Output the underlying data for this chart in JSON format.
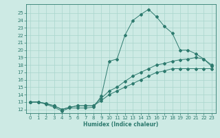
{
  "xlabel": "Humidex (Indice chaleur)",
  "background_color": "#cdeae4",
  "grid_color": "#a8d5cc",
  "line_color": "#2d7a6e",
  "xlim": [
    -0.5,
    23.5
  ],
  "ylim": [
    11.5,
    26.2
  ],
  "xticks": [
    0,
    1,
    2,
    3,
    4,
    5,
    6,
    7,
    8,
    9,
    10,
    11,
    12,
    13,
    14,
    15,
    16,
    17,
    18,
    19,
    20,
    21,
    22,
    23
  ],
  "yticks": [
    12,
    13,
    14,
    15,
    16,
    17,
    18,
    19,
    20,
    21,
    22,
    23,
    24,
    25
  ],
  "line1_x": [
    0,
    1,
    2,
    3,
    4,
    5,
    6,
    7,
    8,
    9,
    10,
    11,
    12,
    13,
    14,
    15,
    16,
    17,
    18,
    19,
    20,
    21,
    22,
    23
  ],
  "line1_y": [
    13.0,
    13.0,
    12.7,
    12.3,
    11.8,
    12.2,
    12.2,
    12.2,
    12.3,
    13.8,
    18.5,
    18.8,
    22.0,
    24.0,
    24.8,
    25.5,
    24.5,
    23.2,
    22.3,
    20.0,
    20.0,
    19.5,
    18.8,
    17.8
  ],
  "line2_x": [
    0,
    1,
    2,
    3,
    4,
    5,
    6,
    7,
    8,
    9,
    10,
    11,
    12,
    13,
    14,
    15,
    16,
    17,
    18,
    19,
    20,
    21,
    22,
    23
  ],
  "line2_y": [
    13.0,
    13.0,
    12.8,
    12.5,
    12.0,
    12.3,
    12.5,
    12.5,
    12.5,
    13.5,
    14.5,
    15.0,
    15.8,
    16.5,
    17.0,
    17.5,
    18.0,
    18.2,
    18.5,
    18.7,
    18.8,
    19.0,
    18.8,
    18.0
  ],
  "line3_x": [
    0,
    1,
    2,
    3,
    4,
    5,
    6,
    7,
    8,
    9,
    10,
    11,
    12,
    13,
    14,
    15,
    16,
    17,
    18,
    19,
    20,
    21,
    22,
    23
  ],
  "line3_y": [
    13.0,
    13.0,
    12.8,
    12.5,
    12.0,
    12.3,
    12.5,
    12.5,
    12.5,
    13.2,
    14.0,
    14.5,
    15.0,
    15.5,
    16.0,
    16.5,
    17.0,
    17.2,
    17.5,
    17.5,
    17.5,
    17.5,
    17.5,
    17.5
  ]
}
